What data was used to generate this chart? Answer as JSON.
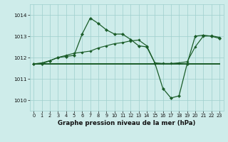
{
  "xlabel": "Graphe pression niveau de la mer (hPa)",
  "background_color": "#ceecea",
  "grid_color": "#9ecfcc",
  "line_color": "#1a5c28",
  "ylim": [
    1009.5,
    1014.5
  ],
  "xlim": [
    -0.5,
    23.5
  ],
  "yticks": [
    1010,
    1011,
    1012,
    1013,
    1014
  ],
  "xticks": [
    0,
    1,
    2,
    3,
    4,
    5,
    6,
    7,
    8,
    9,
    10,
    11,
    12,
    13,
    14,
    15,
    16,
    17,
    18,
    19,
    20,
    21,
    22,
    23
  ],
  "series1_x": [
    0,
    1,
    2,
    3,
    4,
    5,
    6,
    7,
    8,
    9,
    10,
    11,
    12,
    13,
    14,
    15,
    16,
    17,
    18,
    19,
    20,
    21,
    22,
    23
  ],
  "series1_y": [
    1011.7,
    1011.7,
    1011.85,
    1012.0,
    1012.05,
    1012.1,
    1013.1,
    1013.85,
    1013.6,
    1013.3,
    1013.1,
    1013.1,
    1012.85,
    1012.55,
    1012.5,
    1011.75,
    1010.55,
    1010.1,
    1010.2,
    1011.7,
    1013.0,
    1013.05,
    1013.0,
    1012.9
  ],
  "series2_x": [
    0,
    1,
    2,
    3,
    4,
    5,
    6,
    7,
    8,
    9,
    10,
    11,
    12,
    13,
    14,
    15,
    16,
    17,
    18,
    19,
    20,
    21,
    22,
    23
  ],
  "series2_y": [
    1011.7,
    1011.7,
    1011.7,
    1011.7,
    1011.7,
    1011.7,
    1011.7,
    1011.7,
    1011.7,
    1011.7,
    1011.7,
    1011.7,
    1011.7,
    1011.7,
    1011.7,
    1011.7,
    1011.7,
    1011.7,
    1011.7,
    1011.7,
    1011.7,
    1011.7,
    1011.7,
    1011.7
  ],
  "series3_x": [
    0,
    1,
    2,
    3,
    4,
    5,
    6,
    7,
    8,
    9,
    10,
    11,
    12,
    13,
    14,
    15,
    16,
    17,
    18,
    19,
    20,
    21,
    22,
    23
  ],
  "series3_y": [
    1011.7,
    1011.75,
    1011.85,
    1012.0,
    1012.1,
    1012.2,
    1012.25,
    1012.3,
    1012.45,
    1012.55,
    1012.65,
    1012.7,
    1012.78,
    1012.82,
    1012.55,
    1011.75,
    1011.72,
    1011.72,
    1011.75,
    1011.8,
    1012.5,
    1013.0,
    1013.02,
    1012.95
  ]
}
